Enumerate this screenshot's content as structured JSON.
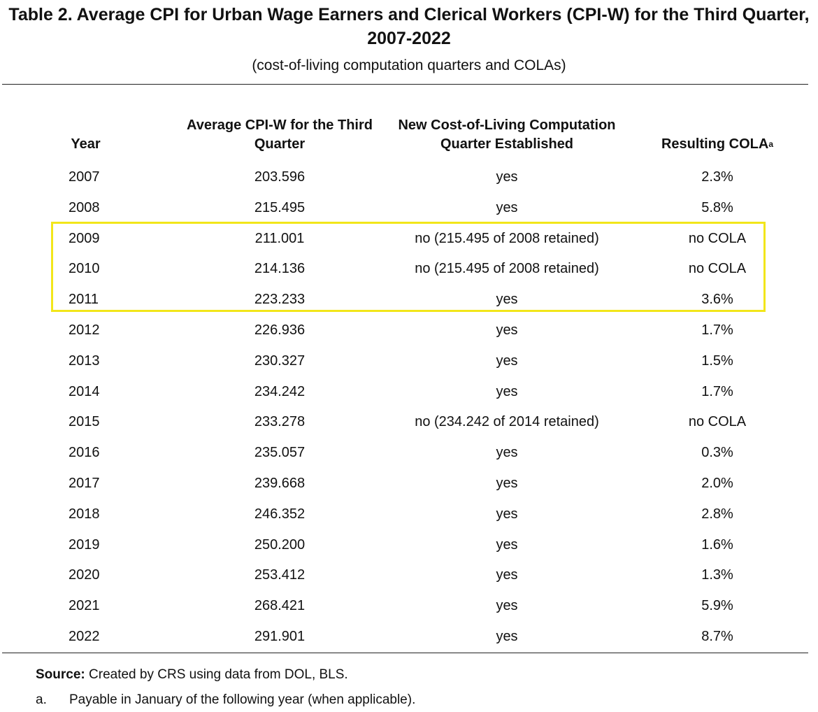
{
  "table": {
    "title": "Table 2. Average CPI for Urban Wage Earners and Clerical Workers (CPI-W) for the Third Quarter, 2007-2022",
    "subtitle": "(cost-of-living computation quarters and COLAs)",
    "headers": {
      "year": "Year",
      "cpi": "Average CPI-W for the Third Quarter",
      "quarter": "New Cost-of-Living Computation Quarter Established",
      "cola": "Resulting COLA",
      "cola_footnote_mark": "a"
    },
    "rows": [
      {
        "year": "2007",
        "cpi": "203.596",
        "quarter": "yes",
        "cola": "2.3%"
      },
      {
        "year": "2008",
        "cpi": "215.495",
        "quarter": "yes",
        "cola": "5.8%"
      },
      {
        "year": "2009",
        "cpi": "211.001",
        "quarter": "no (215.495 of 2008 retained)",
        "cola": "no COLA"
      },
      {
        "year": "2010",
        "cpi": "214.136",
        "quarter": "no (215.495 of 2008 retained)",
        "cola": "no COLA"
      },
      {
        "year": "2011",
        "cpi": "223.233",
        "quarter": "yes",
        "cola": "3.6%"
      },
      {
        "year": "2012",
        "cpi": "226.936",
        "quarter": "yes",
        "cola": "1.7%"
      },
      {
        "year": "2013",
        "cpi": "230.327",
        "quarter": "yes",
        "cola": "1.5%"
      },
      {
        "year": "2014",
        "cpi": "234.242",
        "quarter": "yes",
        "cola": "1.7%"
      },
      {
        "year": "2015",
        "cpi": "233.278",
        "quarter": "no (234.242 of 2014 retained)",
        "cola": "no COLA"
      },
      {
        "year": "2016",
        "cpi": "235.057",
        "quarter": "yes",
        "cola": "0.3%"
      },
      {
        "year": "2017",
        "cpi": "239.668",
        "quarter": "yes",
        "cola": "2.0%"
      },
      {
        "year": "2018",
        "cpi": "246.352",
        "quarter": "yes",
        "cola": "2.8%"
      },
      {
        "year": "2019",
        "cpi": "250.200",
        "quarter": "yes",
        "cola": "1.6%"
      },
      {
        "year": "2020",
        "cpi": "253.412",
        "quarter": "yes",
        "cola": "1.3%"
      },
      {
        "year": "2021",
        "cpi": "268.421",
        "quarter": "yes",
        "cola": "5.9%"
      },
      {
        "year": "2022",
        "cpi": "291.901",
        "quarter": "yes",
        "cola": "8.7%"
      }
    ],
    "highlight_color": "#f2e61a"
  },
  "source": {
    "label": "Source:",
    "text": "Created by CRS using data from DOL, BLS."
  },
  "footnote": {
    "marker": "a.",
    "text": "Payable in January of the following year (when applicable)."
  }
}
